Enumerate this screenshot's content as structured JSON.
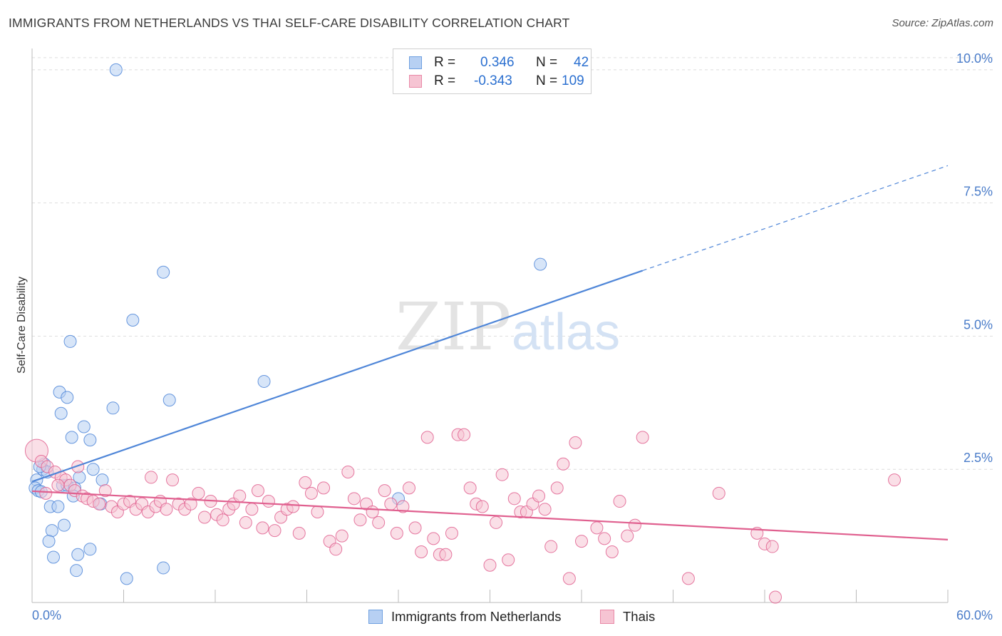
{
  "title": "IMMIGRANTS FROM NETHERLANDS VS THAI SELF-CARE DISABILITY CORRELATION CHART",
  "source": "Source: ZipAtlas.com",
  "watermark": {
    "zip": "ZIP",
    "atlas": "atlas"
  },
  "legend": {
    "rows": [
      {
        "r_label": "R =",
        "r_value": "0.346",
        "n_label": "N =",
        "n_value": "42",
        "color": "#6fa0e0",
        "fill": "#b7d0f3"
      },
      {
        "r_label": "R =",
        "r_value": "-0.343",
        "n_label": "N =",
        "n_value": "109",
        "color": "#e98aa8",
        "fill": "#f6c4d3"
      }
    ]
  },
  "bottom_legend": [
    "Immigrants from Netherlands",
    "Thais"
  ],
  "chart_data": {
    "type": "scatter",
    "title": "IMMIGRANTS FROM NETHERLANDS VS THAI SELF-CARE DISABILITY CORRELATION CHART",
    "xlabel": "",
    "ylabel": "Self-Care Disability",
    "xlim": [
      0,
      60
    ],
    "ylim": [
      0,
      10.4
    ],
    "x_tick_labels": [
      "0.0%",
      "60.0%"
    ],
    "y_ticks": [
      2.5,
      5.0,
      7.5,
      10.0
    ],
    "y_tick_labels": [
      "2.5%",
      "5.0%",
      "7.5%",
      "10.0%"
    ],
    "grid": true,
    "legend_position": "top-center",
    "series": [
      {
        "name": "Immigrants from Netherlands",
        "color": "#4f86d8",
        "fill": "#b7d0f3",
        "trend": {
          "x": [
            0,
            40
          ],
          "y": [
            2.27,
            6.23
          ],
          "extend_dashed_to": [
            60,
            8.2
          ]
        },
        "points": [
          [
            5.5,
            10.0
          ],
          [
            8.6,
            6.2
          ],
          [
            33.3,
            6.35
          ],
          [
            6.6,
            5.3
          ],
          [
            2.5,
            4.9
          ],
          [
            15.2,
            4.15
          ],
          [
            1.8,
            3.95
          ],
          [
            2.3,
            3.85
          ],
          [
            9.0,
            3.8
          ],
          [
            5.3,
            3.65
          ],
          [
            1.9,
            3.55
          ],
          [
            3.4,
            3.3
          ],
          [
            2.6,
            3.1
          ],
          [
            3.8,
            3.05
          ],
          [
            0.8,
            2.6
          ],
          [
            0.7,
            2.5
          ],
          [
            4.0,
            2.5
          ],
          [
            3.1,
            2.35
          ],
          [
            4.6,
            2.3
          ],
          [
            0.3,
            2.3
          ],
          [
            0.2,
            2.15
          ],
          [
            0.4,
            2.1
          ],
          [
            0.6,
            2.08
          ],
          [
            2.0,
            2.2
          ],
          [
            2.3,
            2.2
          ],
          [
            2.8,
            2.15
          ],
          [
            2.7,
            2.0
          ],
          [
            4.5,
            1.85
          ],
          [
            24.0,
            1.95
          ],
          [
            1.2,
            1.8
          ],
          [
            1.7,
            1.8
          ],
          [
            2.1,
            1.45
          ],
          [
            1.3,
            1.35
          ],
          [
            1.1,
            1.15
          ],
          [
            3.8,
            1.0
          ],
          [
            3.0,
            0.9
          ],
          [
            1.4,
            0.85
          ],
          [
            2.9,
            0.6
          ],
          [
            6.2,
            0.45
          ],
          [
            8.6,
            0.65
          ],
          [
            1.0,
            2.45
          ],
          [
            0.5,
            2.55
          ]
        ]
      },
      {
        "name": "Thais",
        "color": "#e0608f",
        "fill": "#f6c4d3",
        "trend": {
          "x": [
            0,
            60
          ],
          "y": [
            2.09,
            1.18
          ]
        },
        "points": [
          [
            0.3,
            2.85
          ],
          [
            0.6,
            2.65
          ],
          [
            1.0,
            2.55
          ],
          [
            1.5,
            2.45
          ],
          [
            1.9,
            2.35
          ],
          [
            2.2,
            2.3
          ],
          [
            2.5,
            2.2
          ],
          [
            2.8,
            2.1
          ],
          [
            3.0,
            2.55
          ],
          [
            3.3,
            2.0
          ],
          [
            3.6,
            1.95
          ],
          [
            4.0,
            1.9
          ],
          [
            4.4,
            1.85
          ],
          [
            4.8,
            2.1
          ],
          [
            5.2,
            1.8
          ],
          [
            5.6,
            1.7
          ],
          [
            6.0,
            1.85
          ],
          [
            6.4,
            1.9
          ],
          [
            6.8,
            1.75
          ],
          [
            7.2,
            1.85
          ],
          [
            7.6,
            1.7
          ],
          [
            7.8,
            2.35
          ],
          [
            8.1,
            1.8
          ],
          [
            8.4,
            1.9
          ],
          [
            8.8,
            1.75
          ],
          [
            9.2,
            2.3
          ],
          [
            9.6,
            1.85
          ],
          [
            10.0,
            1.75
          ],
          [
            10.4,
            1.85
          ],
          [
            10.9,
            2.05
          ],
          [
            11.3,
            1.6
          ],
          [
            11.7,
            1.9
          ],
          [
            12.1,
            1.65
          ],
          [
            12.5,
            1.55
          ],
          [
            12.9,
            1.75
          ],
          [
            13.2,
            1.85
          ],
          [
            13.6,
            2.0
          ],
          [
            14.0,
            1.5
          ],
          [
            14.4,
            1.75
          ],
          [
            14.8,
            2.1
          ],
          [
            15.1,
            1.4
          ],
          [
            15.5,
            1.9
          ],
          [
            15.9,
            1.35
          ],
          [
            16.3,
            1.6
          ],
          [
            16.7,
            1.75
          ],
          [
            17.1,
            1.8
          ],
          [
            17.5,
            1.3
          ],
          [
            17.9,
            2.25
          ],
          [
            18.3,
            2.05
          ],
          [
            18.7,
            1.7
          ],
          [
            19.1,
            2.15
          ],
          [
            19.5,
            1.15
          ],
          [
            19.9,
            1.0
          ],
          [
            20.3,
            1.25
          ],
          [
            20.7,
            2.45
          ],
          [
            21.1,
            1.95
          ],
          [
            21.5,
            1.55
          ],
          [
            21.9,
            1.85
          ],
          [
            22.3,
            1.7
          ],
          [
            22.7,
            1.5
          ],
          [
            23.1,
            2.1
          ],
          [
            23.5,
            1.85
          ],
          [
            23.9,
            1.3
          ],
          [
            24.3,
            1.8
          ],
          [
            24.7,
            2.15
          ],
          [
            25.1,
            1.4
          ],
          [
            25.5,
            0.95
          ],
          [
            25.9,
            3.1
          ],
          [
            26.3,
            1.2
          ],
          [
            26.7,
            0.9
          ],
          [
            27.1,
            0.9
          ],
          [
            27.5,
            1.3
          ],
          [
            27.9,
            3.15
          ],
          [
            28.3,
            3.15
          ],
          [
            28.7,
            2.15
          ],
          [
            29.1,
            1.85
          ],
          [
            29.5,
            1.8
          ],
          [
            30.0,
            0.7
          ],
          [
            30.4,
            1.5
          ],
          [
            30.8,
            2.4
          ],
          [
            31.2,
            0.8
          ],
          [
            31.6,
            1.95
          ],
          [
            32.0,
            1.7
          ],
          [
            32.4,
            1.7
          ],
          [
            32.8,
            1.85
          ],
          [
            33.2,
            2.0
          ],
          [
            33.6,
            1.75
          ],
          [
            34.0,
            1.05
          ],
          [
            34.4,
            2.15
          ],
          [
            34.8,
            2.6
          ],
          [
            35.2,
            0.45
          ],
          [
            35.6,
            3.0
          ],
          [
            36.0,
            1.15
          ],
          [
            37.0,
            1.4
          ],
          [
            37.5,
            1.2
          ],
          [
            38.0,
            0.95
          ],
          [
            38.5,
            1.9
          ],
          [
            39.0,
            1.25
          ],
          [
            39.5,
            1.45
          ],
          [
            40.0,
            3.1
          ],
          [
            43.0,
            0.45
          ],
          [
            45.0,
            2.05
          ],
          [
            47.5,
            1.3
          ],
          [
            48.0,
            1.1
          ],
          [
            48.5,
            1.05
          ],
          [
            48.7,
            0.1
          ],
          [
            56.5,
            2.3
          ],
          [
            0.9,
            2.05
          ],
          [
            1.7,
            2.2
          ]
        ]
      }
    ]
  }
}
